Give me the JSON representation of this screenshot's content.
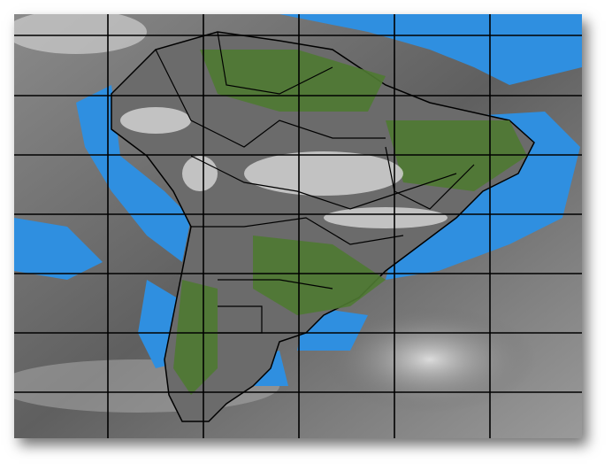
{
  "map": {
    "type": "satellite infrared composite",
    "region": "South America",
    "colors": {
      "ocean_clear": "#2f8fe0",
      "land": "#4f7a32",
      "cloud_dark": "#5e5e5e",
      "cloud_light": "#d8d8d8",
      "borders": "#000000",
      "grid": "#000000"
    },
    "gridlines": {
      "vertical": 6,
      "horizontal": 7
    }
  }
}
